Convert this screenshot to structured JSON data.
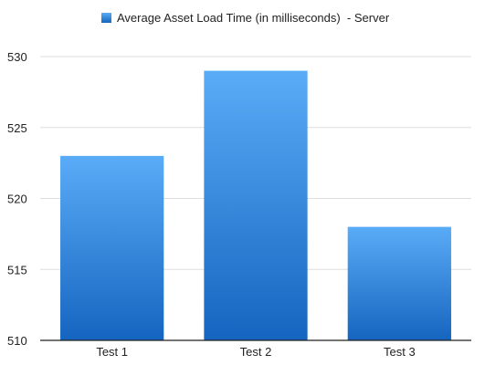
{
  "chart_data": {
    "type": "bar",
    "categories": [
      "Test 1",
      "Test 2",
      "Test 3"
    ],
    "series": [
      {
        "name": "Average Asset Load Time (in milliseconds)  - Server",
        "values": [
          523,
          529,
          518
        ]
      }
    ],
    "ylim": [
      510,
      530
    ],
    "yticks": [
      510,
      515,
      520,
      525,
      530
    ],
    "grid": true,
    "legend_position": "top-center",
    "colors": {
      "bar_top": "#5aacf7",
      "bar_bottom": "#1565c0",
      "grid": "#dddddd",
      "axis": "#222222"
    }
  }
}
